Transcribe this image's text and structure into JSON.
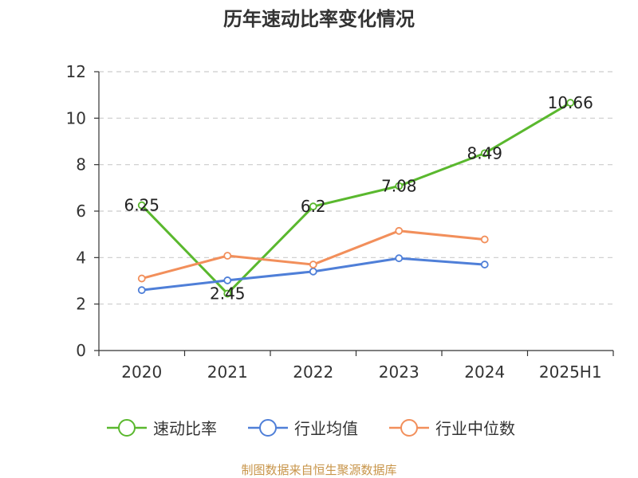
{
  "chart_data": {
    "type": "line",
    "title": "历年速动比率变化情况",
    "categories": [
      "2020",
      "2021",
      "2022",
      "2023",
      "2024",
      "2025H1"
    ],
    "ylim": [
      0,
      12
    ],
    "yticks": [
      0,
      2,
      4,
      6,
      8,
      10,
      12
    ],
    "grid": true,
    "legend_position": "bottom",
    "series": [
      {
        "name": "速动比率",
        "color": "#5ab82e",
        "values": [
          6.25,
          2.45,
          6.2,
          7.08,
          8.49,
          10.66
        ],
        "labels": [
          "6.25",
          "2.45",
          "6.2",
          "7.08",
          "8.49",
          "10.66"
        ]
      },
      {
        "name": "行业均值",
        "color": "#4f7fd8",
        "values": [
          2.6,
          3.02,
          3.4,
          3.97,
          3.7,
          null
        ]
      },
      {
        "name": "行业中位数",
        "color": "#f28f5b",
        "values": [
          3.1,
          4.08,
          3.7,
          5.15,
          4.78,
          null
        ]
      }
    ]
  },
  "footer": {
    "source": "制图数据来自恒生聚源数据库"
  }
}
